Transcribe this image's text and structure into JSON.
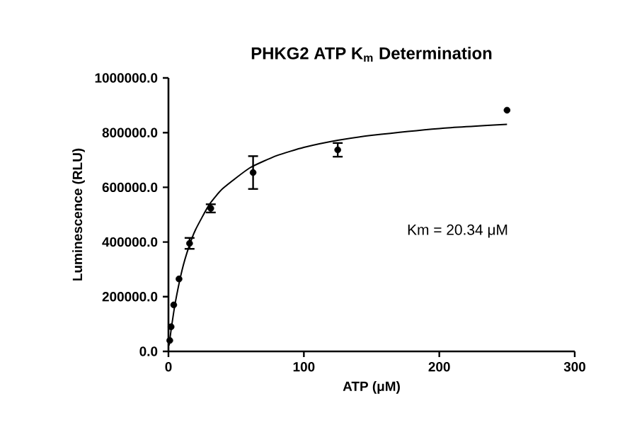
{
  "chart_data": {
    "type": "scatter",
    "title": "PHKG2 ATP K$_{m}$ Determination",
    "xlabel": "ATP (μM)",
    "ylabel": "Luminescence (RLU)",
    "xlim": [
      0,
      300
    ],
    "ylim": [
      0,
      1000000
    ],
    "xticks": [
      0,
      100,
      200,
      300
    ],
    "yticks": [
      {
        "value": 0,
        "label": "0.0"
      },
      {
        "value": 200000,
        "label": "200000.0"
      },
      {
        "value": 400000,
        "label": "400000.0"
      },
      {
        "value": 600000,
        "label": "600000.0"
      },
      {
        "value": 800000,
        "label": "800000.0"
      },
      {
        "value": 1000000,
        "label": "1000000.0"
      }
    ],
    "grid": false,
    "series": [
      {
        "color": "#000000",
        "marker": "circle",
        "x": [
          0.98,
          1.95,
          3.9,
          7.8,
          15.6,
          31.25,
          62.5,
          125,
          250
        ],
        "values": [
          40000,
          90000,
          170000,
          265000,
          395000,
          523000,
          654000,
          737000,
          882000
        ],
        "errors": [
          null,
          null,
          null,
          null,
          20000,
          15000,
          60000,
          25000,
          null
        ]
      },
      {
        "type": "line",
        "color": "#000000",
        "marker": "none",
        "line_style": "solid",
        "x": [
          0.5,
          2,
          5,
          10,
          15,
          20,
          30,
          40,
          60,
          80,
          100,
          125,
          150,
          200,
          250
        ],
        "values": [
          22000,
          80000,
          177000,
          296000,
          381000,
          445000,
          536000,
          595000,
          671000,
          716000,
          746000,
          772000,
          790000,
          815000,
          830000
        ]
      }
    ],
    "annotations": [
      "Km = 20.34 μM"
    ]
  }
}
